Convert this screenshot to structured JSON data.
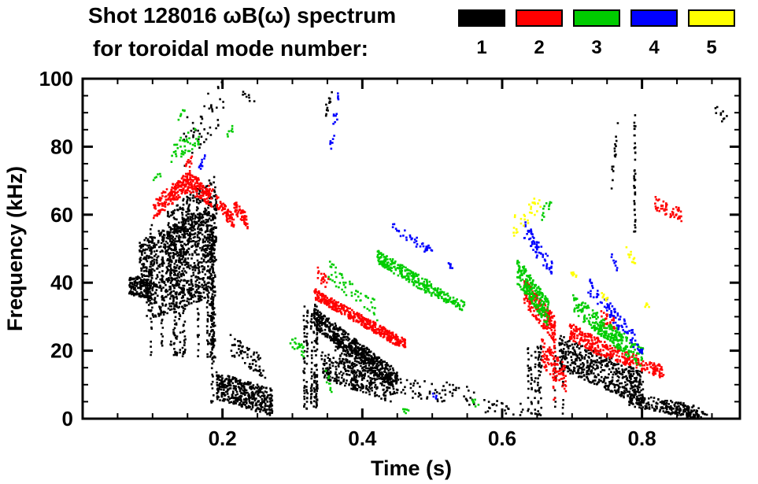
{
  "title": {
    "line1": "Shot 128016 ωB(ω) spectrum",
    "line2": "for toroidal mode number:"
  },
  "legend": {
    "entries": [
      {
        "label": "1",
        "color": "#000000"
      },
      {
        "label": "2",
        "color": "#ff0000"
      },
      {
        "label": "3",
        "color": "#00cc00"
      },
      {
        "label": "4",
        "color": "#0000ff"
      },
      {
        "label": "5",
        "color": "#ffff00"
      }
    ]
  },
  "chart_data": {
    "type": "scatter",
    "title": "Shot 128016 ωB(ω) spectrum for toroidal mode number 1–5",
    "xlabel": "Time (s)",
    "ylabel": "Frequency (kHz)",
    "xlim": [
      0,
      0.94
    ],
    "ylim": [
      0,
      100
    ],
    "xticks": {
      "values": [
        0.2,
        0.4,
        0.6,
        0.8
      ],
      "labels": [
        "0.2",
        "0.4",
        "0.6",
        "0.8"
      ]
    },
    "yticks": {
      "values": [
        0,
        20,
        40,
        60,
        80,
        100
      ],
      "labels": [
        "0",
        "20",
        "40",
        "60",
        "80",
        "100"
      ]
    },
    "x_minor_step": 0.05,
    "y_minor_step": 5,
    "grid": false,
    "legend_position": "top-right",
    "series": [
      {
        "name": "n=1",
        "label": "1",
        "color": "#000000",
        "clusters": [
          {
            "type": "band",
            "t": [
              0.065,
              0.095
            ],
            "f": [
              40,
              38
            ],
            "fj": 3,
            "n": 140
          },
          {
            "type": "band",
            "t": [
              0.08,
              0.19
            ],
            "f": [
              45,
              55
            ],
            "fj": 8,
            "n": 650
          },
          {
            "type": "band",
            "t": [
              0.09,
              0.18
            ],
            "f": [
              34,
              41
            ],
            "fj": 5,
            "n": 300
          },
          {
            "type": "band",
            "t": [
              0.12,
              0.19
            ],
            "f": [
              56,
              66
            ],
            "fj": 6,
            "n": 220
          },
          {
            "type": "cols",
            "t": [
              0.095,
              0.19
            ],
            "f": [
              18,
              58
            ],
            "cols": 16,
            "pts": 26
          },
          {
            "type": "band",
            "t": [
              0.14,
              0.2
            ],
            "f": [
              80,
              95
            ],
            "fj": 7,
            "n": 50
          },
          {
            "type": "cols",
            "t": [
              0.183,
              0.19
            ],
            "f": [
              5,
              55
            ],
            "cols": 2,
            "pts": 45
          },
          {
            "type": "band",
            "t": [
              0.19,
              0.27
            ],
            "f": [
              10,
              5
            ],
            "fj": 4,
            "n": 420
          },
          {
            "type": "band",
            "t": [
              0.21,
              0.26
            ],
            "f": [
              22,
              15
            ],
            "fj": 3,
            "n": 70
          },
          {
            "type": "band",
            "t": [
              0.225,
              0.245
            ],
            "f": [
              96,
              94
            ],
            "fj": 1,
            "n": 8
          },
          {
            "type": "cols",
            "t": [
              0.315,
              0.335
            ],
            "f": [
              3,
              34
            ],
            "cols": 6,
            "pts": 30
          },
          {
            "type": "band",
            "t": [
              0.33,
              0.45
            ],
            "f": [
              30,
              11
            ],
            "fj": 3,
            "n": 480
          },
          {
            "type": "band",
            "t": [
              0.34,
              0.44
            ],
            "f": [
              16,
              9
            ],
            "fj": 4,
            "n": 300
          },
          {
            "type": "band",
            "t": [
              0.36,
              0.44
            ],
            "f": [
              22,
              13
            ],
            "fj": 3,
            "n": 160
          },
          {
            "type": "band",
            "t": [
              0.345,
              0.355
            ],
            "f": [
              90,
              96
            ],
            "fj": 2,
            "n": 12
          },
          {
            "type": "band",
            "t": [
              0.44,
              0.56
            ],
            "f": [
              10,
              7
            ],
            "fj": 3,
            "n": 70
          },
          {
            "type": "band",
            "t": [
              0.57,
              0.63
            ],
            "f": [
              4,
              3
            ],
            "fj": 2,
            "n": 25
          },
          {
            "type": "cols",
            "t": [
              0.63,
              0.7
            ],
            "f": [
              1,
              22
            ],
            "cols": 8,
            "pts": 14
          },
          {
            "type": "band",
            "t": [
              0.68,
              0.8
            ],
            "f": [
              20,
              9
            ],
            "fj": 5,
            "n": 520
          },
          {
            "type": "band",
            "t": [
              0.78,
              0.88
            ],
            "f": [
              6,
              2
            ],
            "fj": 2,
            "n": 220
          },
          {
            "type": "cols",
            "t": [
              0.785,
              0.795
            ],
            "f": [
              55,
              92
            ],
            "cols": 2,
            "pts": 20
          },
          {
            "type": "band",
            "t": [
              0.755,
              0.765
            ],
            "f": [
              70,
              88
            ],
            "fj": 3,
            "n": 16
          },
          {
            "type": "band",
            "t": [
              0.9,
              0.92
            ],
            "f": [
              92,
              88
            ],
            "fj": 2,
            "n": 10
          },
          {
            "type": "band",
            "t": [
              0.86,
              0.9
            ],
            "f": [
              2,
              1
            ],
            "fj": 1,
            "n": 25
          }
        ]
      },
      {
        "name": "n=2",
        "label": "2",
        "color": "#ff0000",
        "clusters": [
          {
            "type": "band",
            "t": [
              0.1,
              0.15
            ],
            "f": [
              62,
              70
            ],
            "fj": 3,
            "n": 180
          },
          {
            "type": "band",
            "t": [
              0.15,
              0.185
            ],
            "f": [
              70,
              65
            ],
            "fj": 3,
            "n": 130
          },
          {
            "type": "band",
            "t": [
              0.145,
              0.155
            ],
            "f": [
              73,
              76
            ],
            "fj": 2,
            "n": 12
          },
          {
            "type": "band",
            "t": [
              0.19,
              0.215
            ],
            "f": [
              64,
              58
            ],
            "fj": 2,
            "n": 70
          },
          {
            "type": "band",
            "t": [
              0.215,
              0.235
            ],
            "f": [
              63,
              58
            ],
            "fj": 2,
            "n": 60
          },
          {
            "type": "band",
            "t": [
              0.33,
              0.46
            ],
            "f": [
              37,
              22
            ],
            "fj": 1.6,
            "n": 420
          },
          {
            "type": "band",
            "t": [
              0.335,
              0.35
            ],
            "f": [
              43,
              40
            ],
            "fj": 2,
            "n": 20
          },
          {
            "type": "band",
            "t": [
              0.63,
              0.675
            ],
            "f": [
              38,
              26
            ],
            "fj": 4,
            "n": 220
          },
          {
            "type": "band",
            "t": [
              0.655,
              0.69
            ],
            "f": [
              20,
              12
            ],
            "fj": 4,
            "n": 100
          },
          {
            "type": "band",
            "t": [
              0.695,
              0.75
            ],
            "f": [
              26,
              20
            ],
            "fj": 2.5,
            "n": 170
          },
          {
            "type": "band",
            "t": [
              0.75,
              0.83
            ],
            "f": [
              20,
              14
            ],
            "fj": 2,
            "n": 150
          },
          {
            "type": "band",
            "t": [
              0.74,
              0.76
            ],
            "f": [
              30,
              28
            ],
            "fj": 2,
            "n": 25
          },
          {
            "type": "band",
            "t": [
              0.815,
              0.855
            ],
            "f": [
              64,
              60
            ],
            "fj": 2,
            "n": 50
          },
          {
            "type": "cols",
            "t": [
              0.665,
              0.675
            ],
            "f": [
              5,
              24
            ],
            "cols": 2,
            "pts": 10
          }
        ]
      },
      {
        "name": "n=3",
        "label": "3",
        "color": "#00cc00",
        "clusters": [
          {
            "type": "band",
            "t": [
              0.125,
              0.165
            ],
            "f": [
              78,
              84
            ],
            "fj": 3,
            "n": 45
          },
          {
            "type": "band",
            "t": [
              0.135,
              0.145
            ],
            "f": [
              88,
              91
            ],
            "fj": 1,
            "n": 7
          },
          {
            "type": "band",
            "t": [
              0.205,
              0.215
            ],
            "f": [
              84,
              86
            ],
            "fj": 1,
            "n": 7
          },
          {
            "type": "band",
            "t": [
              0.1,
              0.11
            ],
            "f": [
              70,
              72
            ],
            "fj": 1,
            "n": 6
          },
          {
            "type": "band",
            "t": [
              0.295,
              0.315
            ],
            "f": [
              24,
              20
            ],
            "fj": 2,
            "n": 22
          },
          {
            "type": "band",
            "t": [
              0.345,
              0.355
            ],
            "f": [
              13,
              10
            ],
            "fj": 2,
            "n": 10
          },
          {
            "type": "band",
            "t": [
              0.35,
              0.42
            ],
            "f": [
              44,
              32
            ],
            "fj": 3,
            "n": 55
          },
          {
            "type": "band",
            "t": [
              0.42,
              0.5
            ],
            "f": [
              48,
              38
            ],
            "fj": 2,
            "n": 200
          },
          {
            "type": "band",
            "t": [
              0.5,
              0.545
            ],
            "f": [
              38,
              33
            ],
            "fj": 1.5,
            "n": 80
          },
          {
            "type": "band",
            "t": [
              0.555,
              0.565
            ],
            "f": [
              6,
              4
            ],
            "fj": 1,
            "n": 7
          },
          {
            "type": "band",
            "t": [
              0.62,
              0.665
            ],
            "f": [
              44,
              31
            ],
            "fj": 4,
            "n": 220
          },
          {
            "type": "band",
            "t": [
              0.655,
              0.67
            ],
            "f": [
              60,
              64
            ],
            "fj": 2,
            "n": 12
          },
          {
            "type": "band",
            "t": [
              0.7,
              0.8
            ],
            "f": [
              34,
              18
            ],
            "fj": 3,
            "n": 230
          },
          {
            "type": "band",
            "t": [
              0.73,
              0.77
            ],
            "f": [
              27,
              23
            ],
            "fj": 2,
            "n": 50
          },
          {
            "type": "band",
            "t": [
              0.455,
              0.465
            ],
            "f": [
              3,
              2
            ],
            "fj": 1,
            "n": 6
          }
        ]
      },
      {
        "name": "n=4",
        "label": "4",
        "color": "#0000ff",
        "clusters": [
          {
            "type": "band",
            "t": [
              0.165,
              0.175
            ],
            "f": [
              74,
              78
            ],
            "fj": 1.5,
            "n": 12
          },
          {
            "type": "band",
            "t": [
              0.35,
              0.365
            ],
            "f": [
              78,
              94
            ],
            "fj": 4,
            "n": 18
          },
          {
            "type": "band",
            "t": [
              0.44,
              0.5
            ],
            "f": [
              57,
              49
            ],
            "fj": 1.5,
            "n": 40
          },
          {
            "type": "band",
            "t": [
              0.52,
              0.53
            ],
            "f": [
              46,
              45
            ],
            "fj": 1,
            "n": 6
          },
          {
            "type": "band",
            "t": [
              0.495,
              0.505
            ],
            "f": [
              8,
              7
            ],
            "fj": 1,
            "n": 5
          },
          {
            "type": "band",
            "t": [
              0.63,
              0.67
            ],
            "f": [
              56,
              44
            ],
            "fj": 3,
            "n": 65
          },
          {
            "type": "band",
            "t": [
              0.72,
              0.79
            ],
            "f": [
              40,
              23
            ],
            "fj": 2.5,
            "n": 85
          },
          {
            "type": "band",
            "t": [
              0.755,
              0.765
            ],
            "f": [
              48,
              44
            ],
            "fj": 1,
            "n": 8
          },
          {
            "type": "band",
            "t": [
              0.79,
              0.8
            ],
            "f": [
              22,
              20
            ],
            "fj": 1,
            "n": 10
          }
        ]
      },
      {
        "name": "n=5",
        "label": "5",
        "color": "#ffff00",
        "clusters": [
          {
            "type": "band",
            "t": [
              0.615,
              0.655
            ],
            "f": [
              57,
              64
            ],
            "fj": 3,
            "n": 32
          },
          {
            "type": "band",
            "t": [
              0.695,
              0.705
            ],
            "f": [
              44,
              42
            ],
            "fj": 1,
            "n": 8
          },
          {
            "type": "band",
            "t": [
              0.74,
              0.75
            ],
            "f": [
              37,
              35
            ],
            "fj": 1,
            "n": 8
          },
          {
            "type": "band",
            "t": [
              0.775,
              0.79
            ],
            "f": [
              50,
              46
            ],
            "fj": 2,
            "n": 12
          },
          {
            "type": "band",
            "t": [
              0.8,
              0.81
            ],
            "f": [
              34,
              33
            ],
            "fj": 1,
            "n": 5
          }
        ]
      }
    ]
  }
}
